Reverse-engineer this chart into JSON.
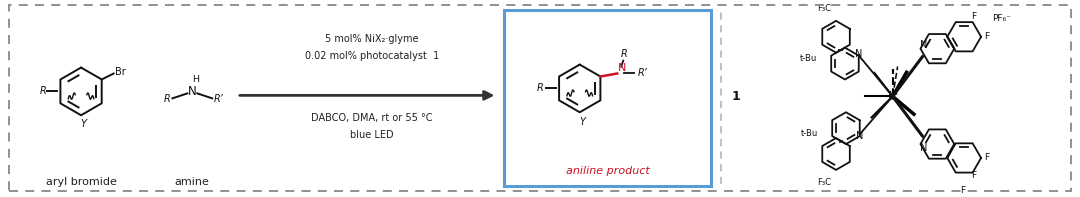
{
  "bg_color": "#ffffff",
  "border_color": "#888888",
  "fig_width": 10.8,
  "fig_height": 1.97,
  "struct_color": "#111111",
  "text_color": "#222222",
  "red_color": "#cc1122",
  "blue_box_color": "#5b9bd5",
  "divider_color": "#bbbbbb",
  "arrow_color": "#333333",
  "label_aryl": "aryl bromide",
  "label_amine": "amine",
  "label_product": "aniline product",
  "cond1": "5 mol% NiX",
  "cond1b": "₂",
  "cond1c": "·glyme",
  "cond2a": "0.02 mol% photocatalyst ",
  "cond2b": "1",
  "cond3": "DABCO, DMA, rt or 55 °C",
  "cond4": "blue LED",
  "ir_label": "1",
  "pf6": "PF₆⁻"
}
